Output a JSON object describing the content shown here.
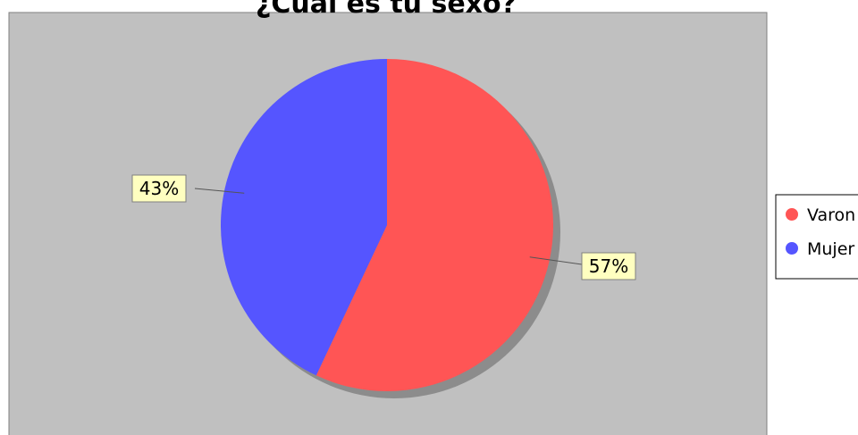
{
  "chart_data": {
    "type": "pie",
    "title": "¿Cuál es tu sexo?",
    "slices": [
      {
        "label": "Varon",
        "value": 57,
        "display": "57%",
        "color": "#ff5555"
      },
      {
        "label": "Mujer",
        "value": 43,
        "display": "43%",
        "color": "#5555ff"
      }
    ],
    "legend_position": "right",
    "plot_background": "#c0c0c0",
    "label_background": "#ffffc0"
  }
}
